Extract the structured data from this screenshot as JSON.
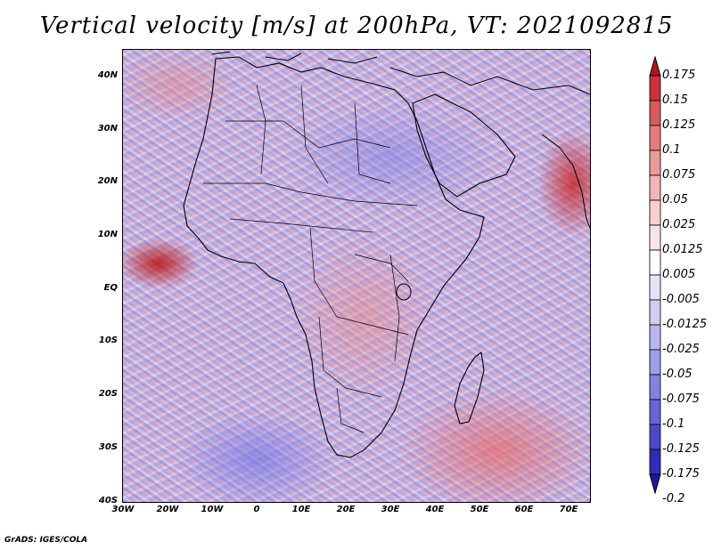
{
  "title": "Vertical velocity [m/s] at 200hPa, VT: 2021092815",
  "footer": "GrADS: IGES/COLA",
  "map": {
    "lat_labels": [
      "40N",
      "30N",
      "20N",
      "10N",
      "EQ",
      "10S",
      "20S",
      "30S",
      "40S"
    ],
    "lon_labels": [
      "30W",
      "20W",
      "10W",
      "0",
      "10E",
      "20E",
      "30E",
      "40E",
      "50E",
      "60E",
      "70E"
    ],
    "lat_range": [
      -40,
      45
    ],
    "lon_range": [
      -30,
      75
    ]
  },
  "colorbar": {
    "levels": [
      "0.175",
      "0.15",
      "0.125",
      "0.1",
      "0.075",
      "0.05",
      "0.025",
      "0.0125",
      "0.005",
      "-0.005",
      "-0.0125",
      "-0.025",
      "-0.05",
      "-0.075",
      "-0.1",
      "-0.125",
      "-0.175",
      "-0.2"
    ],
    "colors": [
      "#b4141e",
      "#c8323c",
      "#d75a5f",
      "#e47c7f",
      "#ec9a9c",
      "#f2b6b7",
      "#f7cfd0",
      "#fbe4e5",
      "#ffffff",
      "#e4e4f8",
      "#cfcff3",
      "#b7b7ee",
      "#9d9de8",
      "#8282e0",
      "#6666d8",
      "#4a4ac8",
      "#2e2eb4",
      "#1a1aa0"
    ],
    "top_arrow_color": "#b4141e",
    "bottom_arrow_color": "#1a1aa0"
  }
}
